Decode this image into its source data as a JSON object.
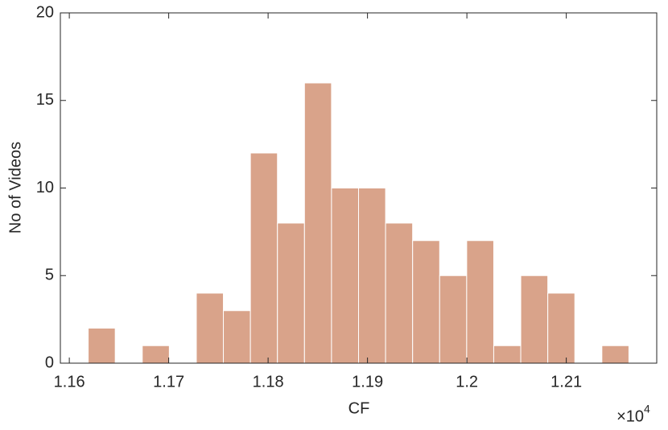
{
  "chart_data": {
    "type": "histogram",
    "xlabel": "CF",
    "ylabel": "No of Videos",
    "x_multiplier": {
      "base": "×10",
      "exponent": "4"
    },
    "bins": [
      1.1619,
      1.16462,
      1.16734,
      1.17006,
      1.17278,
      1.1755,
      1.17822,
      1.18094,
      1.18366,
      1.18638,
      1.1891,
      1.19182,
      1.19454,
      1.19726,
      1.19998,
      1.2027,
      1.20542,
      1.20814,
      1.21086,
      1.21358,
      1.2163
    ],
    "values": [
      2,
      0,
      1,
      0,
      4,
      3,
      12,
      8,
      16,
      10,
      10,
      8,
      7,
      5,
      7,
      1,
      5,
      4,
      0,
      1
    ],
    "color": "#d9a38a",
    "xlim": [
      1.1591,
      1.2191
    ],
    "xticks": [
      1.16,
      1.17,
      1.18,
      1.19,
      1.2,
      1.21
    ],
    "ylim": [
      0,
      20
    ],
    "yticks": [
      0,
      5,
      10,
      15,
      20
    ]
  }
}
